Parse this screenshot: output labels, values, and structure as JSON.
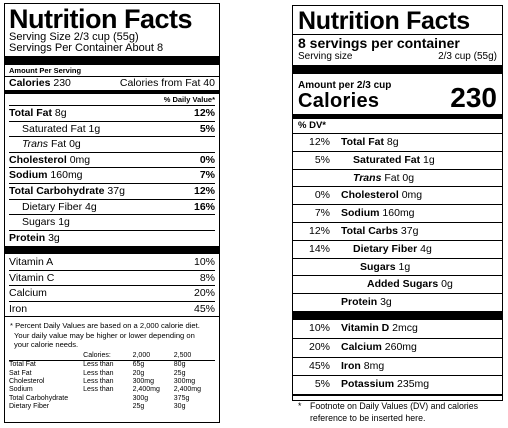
{
  "old_label": {
    "title": "Nutrition Facts",
    "serving_size": "Serving Size 2/3 cup (55g)",
    "servings_per_container": "Servings Per Container About 8",
    "amount_per_serving": "Amount Per Serving",
    "calories_label": "Calories",
    "calories_value": "230",
    "calories_from_fat": "Calories from Fat 40",
    "dv_header": "% Daily Value*",
    "nutrients": [
      {
        "name": "Total Fat",
        "amount": "8g",
        "dv": "12%"
      },
      {
        "name": "Saturated Fat",
        "amount": "1g",
        "dv": "5%"
      },
      {
        "name": "Trans",
        "amount": "Fat 0g",
        "dv": ""
      },
      {
        "name": "Cholesterol",
        "amount": "0mg",
        "dv": "0%"
      },
      {
        "name": "Sodium",
        "amount": "160mg",
        "dv": "7%"
      },
      {
        "name": "Total Carbohydrate",
        "amount": "37g",
        "dv": "12%"
      },
      {
        "name": "Dietary Fiber",
        "amount": "4g",
        "dv": "16%"
      },
      {
        "name": "Sugars",
        "amount": "1g",
        "dv": ""
      },
      {
        "name": "Protein",
        "amount": "3g",
        "dv": ""
      }
    ],
    "vitamins": [
      {
        "name": "Vitamin A",
        "dv": "10%"
      },
      {
        "name": "Vitamin C",
        "dv": "8%"
      },
      {
        "name": "Calcium",
        "dv": "20%"
      },
      {
        "name": "Iron",
        "dv": "45%"
      }
    ],
    "footnote_line1": "* Percent Daily Values are based on a 2,000 calorie diet.",
    "footnote_line2": "Your daily value may be higher or lower depending on",
    "footnote_line3": "your calorie needs.",
    "table": {
      "header": [
        "",
        "Calories:",
        "2,000",
        "2,500"
      ],
      "rows": [
        [
          "Total Fat",
          "Less than",
          "65g",
          "80g"
        ],
        [
          "Sat Fat",
          "Less than",
          "20g",
          "25g"
        ],
        [
          "Cholesterol",
          "Less than",
          "300mg",
          "300mg"
        ],
        [
          "Sodium",
          "Less than",
          "2,400mg",
          "2,400mg"
        ],
        [
          "Total Carbohydrate",
          "",
          "300g",
          "375g"
        ],
        [
          "Dietary Fiber",
          "",
          "25g",
          "30g"
        ]
      ]
    }
  },
  "new_label": {
    "title": "Nutrition Facts",
    "servings": "8 servings per container",
    "serving_size_label": "Serving size",
    "serving_size_value": "2/3 cup (55g)",
    "amount_per": "Amount per 2/3 cup",
    "calories_label": "Calories",
    "calories_value": "230",
    "dv_header": "% DV*",
    "nutrients": [
      {
        "dv": "12%",
        "name": "Total Fat",
        "amount": "8g"
      },
      {
        "dv": "5%",
        "name": "Saturated Fat",
        "amount": "1g"
      },
      {
        "dv": "",
        "name": "Trans",
        "amount": "Fat 0g"
      },
      {
        "dv": "0%",
        "name": "Cholesterol",
        "amount": "0mg"
      },
      {
        "dv": "7%",
        "name": "Sodium",
        "amount": "160mg"
      },
      {
        "dv": "12%",
        "name": "Total Carbs",
        "amount": "37g"
      },
      {
        "dv": "14%",
        "name": "Dietary Fiber",
        "amount": "4g"
      },
      {
        "dv": "",
        "name": "Sugars",
        "amount": "1g"
      },
      {
        "dv": "",
        "name": "Added Sugars",
        "amount": "0g"
      },
      {
        "dv": "",
        "name": "Protein",
        "amount": "3g"
      }
    ],
    "vitamins": [
      {
        "dv": "10%",
        "name": "Vitamin D",
        "amount": "2mcg"
      },
      {
        "dv": "20%",
        "name": "Calcium",
        "amount": "260mg"
      },
      {
        "dv": "45%",
        "name": "Iron",
        "amount": "8mg"
      },
      {
        "dv": "5%",
        "name": "Potassium",
        "amount": "235mg"
      }
    ],
    "footnote_star": "*",
    "footnote": "Footnote on Daily Values (DV) and calories reference to be inserted here."
  }
}
